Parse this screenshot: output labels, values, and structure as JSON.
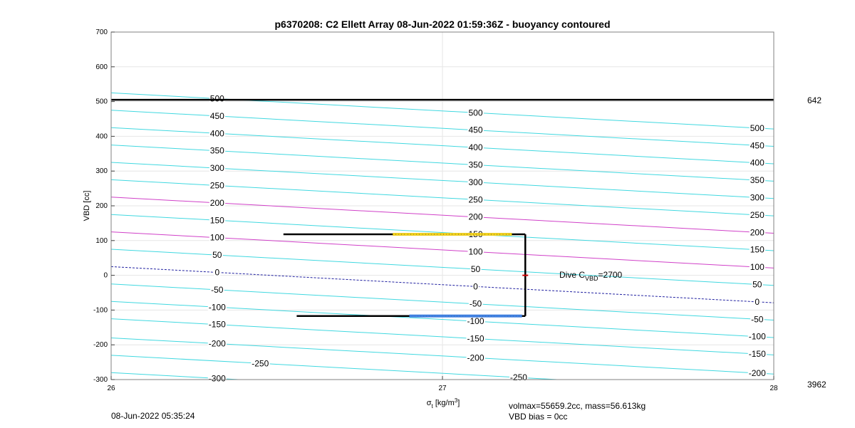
{
  "chart_data": {
    "type": "line",
    "title": "p6370208: C2 Ellett Array 08-Jun-2022 01:59:36Z - buoyancy contoured",
    "xlabel_main": "σ",
    "xlabel_sub": "t",
    "xlabel_unit_pre": " [kg/m",
    "xlabel_unit_sup": "3",
    "xlabel_unit_post": "]",
    "ylabel": "VBD [cc]",
    "xlim": [
      26,
      28
    ],
    "ylim": [
      -300,
      700
    ],
    "xticks": [
      "26",
      "27",
      "28"
    ],
    "yticks": [
      "-300",
      "-200",
      "-100",
      "0",
      "100",
      "200",
      "300",
      "400",
      "500",
      "600",
      "700"
    ],
    "grid": true,
    "contours": {
      "levels": [
        -300,
        -250,
        -200,
        -150,
        -100,
        -50,
        0,
        50,
        100,
        150,
        200,
        250,
        300,
        350,
        400,
        450,
        500
      ],
      "highlight_levels": [
        100,
        200
      ],
      "zero_level": 0,
      "y_at_x26": [
        -280,
        -230,
        -180,
        -125,
        -75,
        -25,
        25,
        75,
        125,
        175,
        225,
        275,
        325,
        375,
        425,
        475,
        525
      ],
      "slope_per_x": -52,
      "label_positions": [
        {
          "x": 26.32,
          "levels": [
            -300,
            -200,
            -150,
            -100,
            -50,
            0,
            50,
            100,
            150,
            200,
            250,
            300,
            350,
            400,
            450,
            500
          ]
        },
        {
          "x": 26.45,
          "levels": [
            -250
          ]
        },
        {
          "x": 27.1,
          "levels": [
            -200,
            -150,
            -100,
            -50,
            0,
            50,
            100,
            150,
            200,
            250,
            300,
            350,
            400,
            450,
            500
          ]
        },
        {
          "x": 27.23,
          "levels": [
            -250
          ]
        },
        {
          "x": 27.95,
          "levels": [
            -200,
            -150,
            -100,
            -50,
            0,
            50,
            100,
            150,
            200,
            250,
            300,
            350,
            400,
            450,
            500
          ]
        }
      ]
    },
    "max_line": {
      "y": 505,
      "right_label": "642"
    },
    "bottom_right_label": "3962",
    "dive_trace": {
      "upper_y": 118,
      "lower_y": -117,
      "upper_x_range": [
        26.52,
        27.25
      ],
      "lower_x_range": [
        26.56,
        27.25
      ],
      "vertical_x": 27.25,
      "midpoint_marker_y": 0
    },
    "dive_note_prefix": "Dive C",
    "dive_note_sub": "VBD",
    "dive_note_value": "=2700",
    "footer_left": "08-Jun-2022 05:35:24",
    "footer_right_1": "volmax=55659.2cc, mass=56.613kg",
    "footer_right_2": "VBD bias = 0cc",
    "colors": {
      "contour": "#40d8e0",
      "highlight": "#d040c8",
      "zero": "#2020a0",
      "trace": "#000000",
      "grid": "#e6e6e6",
      "upper_points": "#f0d020",
      "lower_points": "#4080e0"
    }
  }
}
